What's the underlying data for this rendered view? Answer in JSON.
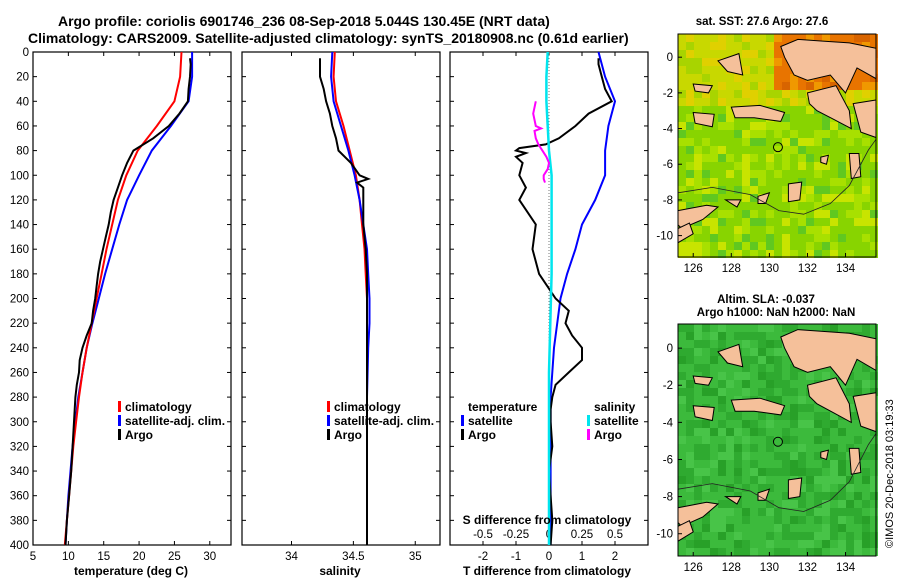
{
  "figure": {
    "title_line1": "Argo profile: coriolis 6901746_236 08-Sep-2018 5.044S 130.45E (NRT data)",
    "title_line2": "Climatology: CARS2009. Satellite-adjusted climatology: synTS_20180908.nc (0.61d earlier)",
    "credit": "©IMOS 20-Dec-2018 03:19:33"
  },
  "colors": {
    "climatology": "#ff0000",
    "satellite": "#0000ff",
    "argo": "#000000",
    "sat_s_diff": "#00e5ee",
    "argo_s_diff": "#ff00ff",
    "land": "#f5c09a",
    "sst_warm": "#e87400",
    "sla_green": "#33b833"
  },
  "chart_data": [
    {
      "type": "line",
      "id": "temperature",
      "xlabel": "temperature (deg C)",
      "xlim": [
        5,
        33
      ],
      "xticks": [
        5,
        10,
        15,
        20,
        25,
        30
      ],
      "ylim": [
        400,
        0
      ],
      "yticks": [
        0,
        20,
        40,
        60,
        80,
        100,
        120,
        140,
        160,
        180,
        200,
        220,
        240,
        260,
        280,
        300,
        320,
        340,
        360,
        380,
        400
      ],
      "legend": [
        "climatology",
        "satellite-adj. clim.",
        "Argo"
      ],
      "series": [
        {
          "name": "climatology",
          "depth": [
            0,
            20,
            40,
            60,
            80,
            100,
            120,
            140,
            160,
            180,
            200,
            220,
            240,
            260,
            280,
            300,
            320,
            340,
            360,
            380,
            400
          ],
          "values": [
            26.0,
            25.8,
            25.0,
            22.5,
            19.8,
            18.2,
            17.0,
            16.2,
            15.4,
            14.7,
            14.0,
            13.3,
            12.6,
            12.0,
            11.5,
            11.1,
            10.7,
            10.4,
            10.1,
            9.8,
            9.5
          ]
        },
        {
          "name": "satellite-adj. clim.",
          "depth": [
            0,
            20,
            40,
            60,
            80,
            100,
            120,
            140,
            160,
            180,
            200,
            220,
            240,
            260,
            280,
            300,
            320,
            340,
            360,
            380,
            400
          ],
          "values": [
            27.5,
            27.5,
            27.0,
            24.5,
            21.8,
            20.0,
            18.3,
            17.2,
            16.2,
            15.2,
            14.3,
            13.4,
            12.6,
            12.0,
            11.4,
            11.0,
            10.6,
            10.3,
            10.0,
            9.8,
            9.6
          ]
        },
        {
          "name": "Argo",
          "depth": [
            5,
            10,
            20,
            30,
            40,
            50,
            60,
            70,
            80,
            90,
            100,
            110,
            120,
            130,
            140,
            150,
            160,
            170,
            180,
            190,
            200,
            210,
            220,
            230,
            240,
            250,
            260,
            270,
            280,
            290,
            300,
            320,
            340,
            360,
            380,
            400
          ],
          "values": [
            27.2,
            27.3,
            27.2,
            27.0,
            26.9,
            25.7,
            24.2,
            22.0,
            19.2,
            18.3,
            17.6,
            17.0,
            16.4,
            16.0,
            15.7,
            15.3,
            14.9,
            14.5,
            14.2,
            14.0,
            13.8,
            13.5,
            13.3,
            12.6,
            12.0,
            11.6,
            11.5,
            11.2,
            11.0,
            10.9,
            10.8,
            10.6,
            10.4,
            10.1,
            9.8,
            9.6
          ]
        }
      ]
    },
    {
      "type": "line",
      "id": "salinity",
      "xlabel": "salinity",
      "xlim": [
        33.6,
        35.2
      ],
      "xticks": [
        34,
        34.5,
        35
      ],
      "ylim": [
        400,
        0
      ],
      "legend": [
        "climatology",
        "satellite-adj. clim.",
        "Argo"
      ],
      "series": [
        {
          "name": "climatology",
          "depth": [
            0,
            20,
            40,
            60,
            80,
            100,
            120,
            140,
            160,
            180,
            200,
            240,
            280,
            320,
            360,
            400
          ],
          "values": [
            34.35,
            34.34,
            34.36,
            34.42,
            34.47,
            34.52,
            34.55,
            34.57,
            34.59,
            34.6,
            34.61,
            34.61,
            34.61,
            34.61,
            34.61,
            34.61
          ]
        },
        {
          "name": "satellite-adj. clim.",
          "depth": [
            0,
            20,
            40,
            60,
            80,
            100,
            120,
            140,
            160,
            180,
            200,
            220,
            240,
            280,
            320,
            360,
            400
          ],
          "values": [
            34.33,
            34.32,
            34.34,
            34.4,
            34.46,
            34.51,
            34.55,
            34.58,
            34.61,
            34.62,
            34.63,
            34.63,
            34.62,
            34.61,
            34.61,
            34.61,
            34.61
          ]
        },
        {
          "name": "Argo",
          "depth": [
            5,
            10,
            20,
            30,
            40,
            50,
            60,
            70,
            80,
            90,
            100,
            103,
            106,
            110,
            120,
            130,
            140,
            150,
            160,
            180,
            200,
            240,
            280,
            320,
            360,
            400
          ],
          "values": [
            34.23,
            34.23,
            34.23,
            34.26,
            34.28,
            34.31,
            34.33,
            34.36,
            34.38,
            34.48,
            34.55,
            34.62,
            34.53,
            34.58,
            34.58,
            34.58,
            34.58,
            34.59,
            34.6,
            34.61,
            34.61,
            34.61,
            34.61,
            34.61,
            34.61,
            34.61
          ]
        }
      ]
    },
    {
      "type": "line",
      "id": "difference",
      "xlabel": "T difference from climatology",
      "xlabel_top": "S difference from climatology",
      "xlim": [
        -3.0,
        3.0
      ],
      "xticks": [
        -2,
        -1,
        0,
        1,
        2
      ],
      "xticks_s": [
        -0.5,
        -0.25,
        0,
        0.25,
        0.5
      ],
      "xticks_s_labels": [
        "-0.5",
        "-0.25",
        "0",
        "0.25",
        "0.5"
      ],
      "ylim": [
        400,
        0
      ],
      "legend_temperature": [
        "temperature",
        "satellite",
        "Argo"
      ],
      "legend_salinity": [
        "salinity",
        "satellite",
        "Argo"
      ],
      "series": [
        {
          "name": "T satellite",
          "depth": [
            0,
            20,
            40,
            60,
            80,
            100,
            120,
            140,
            160,
            180,
            200,
            240,
            280,
            320,
            360,
            400
          ],
          "values": [
            1.5,
            1.7,
            2.0,
            1.8,
            1.7,
            1.7,
            1.4,
            1.0,
            0.8,
            0.55,
            0.35,
            0.15,
            0.05,
            0.05,
            0.05,
            0.05
          ]
        },
        {
          "name": "T Argo",
          "depth": [
            5,
            10,
            20,
            30,
            40,
            50,
            60,
            70,
            75,
            78,
            80,
            82,
            85,
            90,
            100,
            110,
            120,
            140,
            160,
            180,
            200,
            210,
            220,
            230,
            240,
            250,
            260,
            270,
            280,
            290,
            300,
            320,
            340,
            360,
            380,
            400
          ],
          "values": [
            1.5,
            1.5,
            1.6,
            1.7,
            1.9,
            1.2,
            0.8,
            0.3,
            -0.1,
            -0.9,
            -1.0,
            -0.7,
            -1.0,
            -0.8,
            -0.9,
            -0.7,
            -0.9,
            -0.4,
            -0.5,
            -0.3,
            0.2,
            0.6,
            0.5,
            0.7,
            1.0,
            1.0,
            0.6,
            0.2,
            0.1,
            0.05,
            0.05,
            0.1,
            0.0,
            0.05,
            0.1,
            0.05
          ]
        },
        {
          "name": "S satellite",
          "depth": [
            0,
            20,
            40,
            60,
            80,
            100,
            140,
            180,
            220,
            260,
            300,
            340,
            400
          ],
          "values": [
            -0.01,
            -0.02,
            -0.02,
            -0.01,
            0.0,
            0.02,
            0.02,
            0.02,
            0.01,
            0.0,
            0.0,
            0.0,
            0.0
          ]
        },
        {
          "name": "S Argo",
          "depth": [
            40,
            50,
            60,
            62,
            64,
            70,
            75,
            80,
            85,
            90,
            95,
            100,
            103,
            106
          ],
          "values": [
            -0.1,
            -0.12,
            -0.1,
            -0.06,
            -0.11,
            -0.1,
            -0.08,
            -0.05,
            -0.02,
            0.0,
            -0.01,
            -0.04,
            -0.04,
            -0.03
          ]
        }
      ]
    }
  ],
  "maps": {
    "sst": {
      "title": "sat. SST: 27.6 Argo: 27.6",
      "yticks": [
        "0",
        "-2",
        "-4",
        "-6",
        "-8",
        "-10"
      ],
      "xticks": [
        "126",
        "128",
        "130",
        "132",
        "134"
      ]
    },
    "sla": {
      "title_line1": "Altim. SLA: -0.037",
      "title_line2": "Argo h1000: NaN h2000: NaN",
      "yticks": [
        "0",
        "-2",
        "-4",
        "-6",
        "-8",
        "-10"
      ],
      "xticks": [
        "126",
        "128",
        "130",
        "132",
        "134"
      ]
    }
  }
}
